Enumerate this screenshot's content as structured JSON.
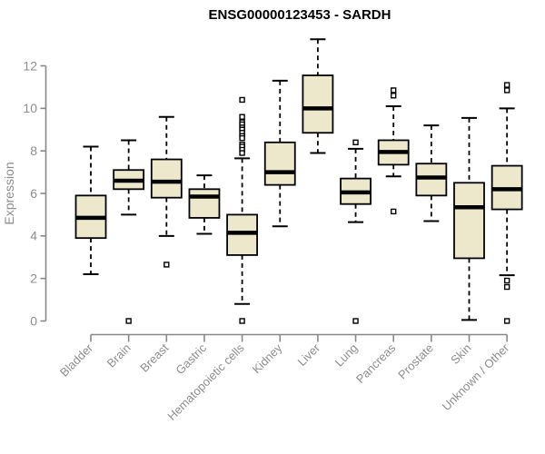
{
  "page": {
    "background_color": "#ffffff"
  },
  "chart_data": {
    "type": "boxplot",
    "title": "ENSG00000123453 - SARDH",
    "ylabel": "Expression",
    "xlabel": "",
    "ylim": [
      0,
      12
    ],
    "yticks": [
      0,
      2,
      4,
      6,
      8,
      10,
      12
    ],
    "grid": false,
    "legend": false,
    "style": {
      "box_fill_color": "#EDE8CC",
      "box_line_color": "#000000",
      "median_color": "#000000",
      "whisker_style": "dashed",
      "outlier_marker": "open-square",
      "axis_color": "#888888",
      "tick_label_color": "#8E8E8E",
      "title_color": "#000000"
    },
    "categories": [
      "Bladder",
      "Brain",
      "Breast",
      "Gastric",
      "Hematopoietic cells",
      "Kidney",
      "Liver",
      "Lung",
      "Pancreas",
      "Prostate",
      "Skin",
      "Unknown / Other"
    ],
    "boxes": [
      {
        "category": "Bladder",
        "whisker_low": 2.2,
        "q1": 3.9,
        "median": 4.85,
        "q3": 5.9,
        "whisker_high": 8.2,
        "outliers": []
      },
      {
        "category": "Brain",
        "whisker_low": 5.0,
        "q1": 6.2,
        "median": 6.6,
        "q3": 7.1,
        "whisker_high": 8.5,
        "outliers": [
          0
        ]
      },
      {
        "category": "Breast",
        "whisker_low": 4.0,
        "q1": 5.8,
        "median": 6.55,
        "q3": 7.6,
        "whisker_high": 9.6,
        "outliers": [
          2.65
        ]
      },
      {
        "category": "Gastric",
        "whisker_low": 4.1,
        "q1": 4.85,
        "median": 5.85,
        "q3": 6.2,
        "whisker_high": 6.85,
        "outliers": []
      },
      {
        "category": "Hematopoietic cells",
        "whisker_low": 0.8,
        "q1": 3.1,
        "median": 4.15,
        "q3": 5.0,
        "whisker_high": 7.65,
        "outliers": [
          10.4,
          9.6,
          9.35,
          9.25,
          9.1,
          9.0,
          8.85,
          8.7,
          8.6,
          8.3,
          8.2,
          8.05,
          7.9,
          0
        ]
      },
      {
        "category": "Kidney",
        "whisker_low": 4.45,
        "q1": 6.4,
        "median": 7.0,
        "q3": 8.4,
        "whisker_high": 11.3,
        "outliers": []
      },
      {
        "category": "Liver",
        "whisker_low": 7.9,
        "q1": 8.85,
        "median": 10.0,
        "q3": 11.55,
        "whisker_high": 13.25,
        "outliers": []
      },
      {
        "category": "Lung",
        "whisker_low": 4.65,
        "q1": 5.5,
        "median": 6.05,
        "q3": 6.7,
        "whisker_high": 8.1,
        "outliers": [
          8.4,
          0
        ]
      },
      {
        "category": "Pancreas",
        "whisker_low": 6.8,
        "q1": 7.35,
        "median": 7.95,
        "q3": 8.5,
        "whisker_high": 10.1,
        "outliers": [
          10.85,
          10.6,
          5.15
        ]
      },
      {
        "category": "Prostate",
        "whisker_low": 4.7,
        "q1": 5.9,
        "median": 6.75,
        "q3": 7.4,
        "whisker_high": 9.2,
        "outliers": []
      },
      {
        "category": "Skin",
        "whisker_low": 0.05,
        "q1": 2.95,
        "median": 5.35,
        "q3": 6.5,
        "whisker_high": 9.55,
        "outliers": []
      },
      {
        "category": "Unknown / Other",
        "whisker_low": 2.15,
        "q1": 5.25,
        "median": 6.2,
        "q3": 7.3,
        "whisker_high": 10.0,
        "outliers": [
          11.1,
          10.85,
          1.9,
          1.6,
          0
        ]
      }
    ]
  }
}
